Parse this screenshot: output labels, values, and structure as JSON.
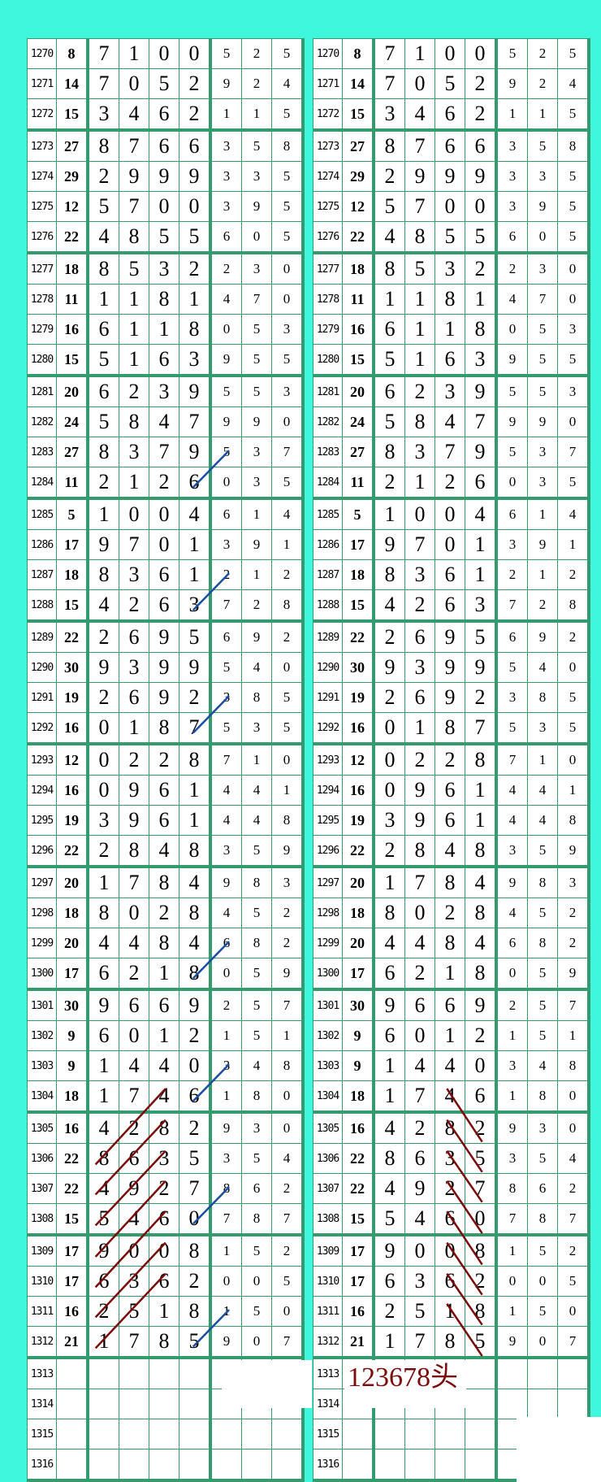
{
  "colors": {
    "background": "#3ef7dd",
    "grid": "#339b6e",
    "blue_line": "#1a4fa0",
    "red_line": "#7a0c0c"
  },
  "annotation": {
    "label": "123678头"
  },
  "rows": [
    {
      "period": "1270",
      "sum": "8",
      "big": [
        "7",
        "1",
        "0",
        "0"
      ],
      "small": [
        "5",
        "2",
        "5"
      ]
    },
    {
      "period": "1271",
      "sum": "14",
      "big": [
        "7",
        "0",
        "5",
        "2"
      ],
      "small": [
        "9",
        "2",
        "4"
      ]
    },
    {
      "period": "1272",
      "sum": "15",
      "big": [
        "3",
        "4",
        "6",
        "2"
      ],
      "small": [
        "1",
        "1",
        "5"
      ]
    },
    {
      "period": "1273",
      "sum": "27",
      "big": [
        "8",
        "7",
        "6",
        "6"
      ],
      "small": [
        "3",
        "5",
        "8"
      ]
    },
    {
      "period": "1274",
      "sum": "29",
      "big": [
        "2",
        "9",
        "9",
        "9"
      ],
      "small": [
        "3",
        "3",
        "5"
      ]
    },
    {
      "period": "1275",
      "sum": "12",
      "big": [
        "5",
        "7",
        "0",
        "0"
      ],
      "small": [
        "3",
        "9",
        "5"
      ]
    },
    {
      "period": "1276",
      "sum": "22",
      "big": [
        "4",
        "8",
        "5",
        "5"
      ],
      "small": [
        "6",
        "0",
        "5"
      ]
    },
    {
      "period": "1277",
      "sum": "18",
      "big": [
        "8",
        "5",
        "3",
        "2"
      ],
      "small": [
        "2",
        "3",
        "0"
      ]
    },
    {
      "period": "1278",
      "sum": "11",
      "big": [
        "1",
        "1",
        "8",
        "1"
      ],
      "small": [
        "4",
        "7",
        "0"
      ]
    },
    {
      "period": "1279",
      "sum": "16",
      "big": [
        "6",
        "1",
        "1",
        "8"
      ],
      "small": [
        "0",
        "5",
        "3"
      ]
    },
    {
      "period": "1280",
      "sum": "15",
      "big": [
        "5",
        "1",
        "6",
        "3"
      ],
      "small": [
        "9",
        "5",
        "5"
      ]
    },
    {
      "period": "1281",
      "sum": "20",
      "big": [
        "6",
        "2",
        "3",
        "9"
      ],
      "small": [
        "5",
        "5",
        "3"
      ]
    },
    {
      "period": "1282",
      "sum": "24",
      "big": [
        "5",
        "8",
        "4",
        "7"
      ],
      "small": [
        "9",
        "9",
        "0"
      ]
    },
    {
      "period": "1283",
      "sum": "27",
      "big": [
        "8",
        "3",
        "7",
        "9"
      ],
      "small": [
        "5",
        "3",
        "7"
      ]
    },
    {
      "period": "1284",
      "sum": "11",
      "big": [
        "2",
        "1",
        "2",
        "6"
      ],
      "small": [
        "0",
        "3",
        "5"
      ]
    },
    {
      "period": "1285",
      "sum": "5",
      "big": [
        "1",
        "0",
        "0",
        "4"
      ],
      "small": [
        "6",
        "1",
        "4"
      ]
    },
    {
      "period": "1286",
      "sum": "17",
      "big": [
        "9",
        "7",
        "0",
        "1"
      ],
      "small": [
        "3",
        "9",
        "1"
      ]
    },
    {
      "period": "1287",
      "sum": "18",
      "big": [
        "8",
        "3",
        "6",
        "1"
      ],
      "small": [
        "2",
        "1",
        "2"
      ]
    },
    {
      "period": "1288",
      "sum": "15",
      "big": [
        "4",
        "2",
        "6",
        "3"
      ],
      "small": [
        "7",
        "2",
        "8"
      ]
    },
    {
      "period": "1289",
      "sum": "22",
      "big": [
        "2",
        "6",
        "9",
        "5"
      ],
      "small": [
        "6",
        "9",
        "2"
      ]
    },
    {
      "period": "1290",
      "sum": "30",
      "big": [
        "9",
        "3",
        "9",
        "9"
      ],
      "small": [
        "5",
        "4",
        "0"
      ]
    },
    {
      "period": "1291",
      "sum": "19",
      "big": [
        "2",
        "6",
        "9",
        "2"
      ],
      "small": [
        "3",
        "8",
        "5"
      ]
    },
    {
      "period": "1292",
      "sum": "16",
      "big": [
        "0",
        "1",
        "8",
        "7"
      ],
      "small": [
        "5",
        "3",
        "5"
      ]
    },
    {
      "period": "1293",
      "sum": "12",
      "big": [
        "0",
        "2",
        "2",
        "8"
      ],
      "small": [
        "7",
        "1",
        "0"
      ]
    },
    {
      "period": "1294",
      "sum": "16",
      "big": [
        "0",
        "9",
        "6",
        "1"
      ],
      "small": [
        "4",
        "4",
        "1"
      ]
    },
    {
      "period": "1295",
      "sum": "19",
      "big": [
        "3",
        "9",
        "6",
        "1"
      ],
      "small": [
        "4",
        "4",
        "8"
      ]
    },
    {
      "period": "1296",
      "sum": "22",
      "big": [
        "2",
        "8",
        "4",
        "8"
      ],
      "small": [
        "3",
        "5",
        "9"
      ]
    },
    {
      "period": "1297",
      "sum": "20",
      "big": [
        "1",
        "7",
        "8",
        "4"
      ],
      "small": [
        "9",
        "8",
        "3"
      ]
    },
    {
      "period": "1298",
      "sum": "18",
      "big": [
        "8",
        "0",
        "2",
        "8"
      ],
      "small": [
        "4",
        "5",
        "2"
      ]
    },
    {
      "period": "1299",
      "sum": "20",
      "big": [
        "4",
        "4",
        "8",
        "4"
      ],
      "small": [
        "6",
        "8",
        "2"
      ]
    },
    {
      "period": "1300",
      "sum": "17",
      "big": [
        "6",
        "2",
        "1",
        "8"
      ],
      "small": [
        "0",
        "5",
        "9"
      ]
    },
    {
      "period": "1301",
      "sum": "30",
      "big": [
        "9",
        "6",
        "6",
        "9"
      ],
      "small": [
        "2",
        "5",
        "7"
      ]
    },
    {
      "period": "1302",
      "sum": "9",
      "big": [
        "6",
        "0",
        "1",
        "2"
      ],
      "small": [
        "1",
        "5",
        "1"
      ]
    },
    {
      "period": "1303",
      "sum": "9",
      "big": [
        "1",
        "4",
        "4",
        "0"
      ],
      "small": [
        "3",
        "4",
        "8"
      ]
    },
    {
      "period": "1304",
      "sum": "18",
      "big": [
        "1",
        "7",
        "4",
        "6"
      ],
      "small": [
        "1",
        "8",
        "0"
      ]
    },
    {
      "period": "1305",
      "sum": "16",
      "big": [
        "4",
        "2",
        "8",
        "2"
      ],
      "small": [
        "9",
        "3",
        "0"
      ]
    },
    {
      "period": "1306",
      "sum": "22",
      "big": [
        "8",
        "6",
        "3",
        "5"
      ],
      "small": [
        "3",
        "5",
        "4"
      ]
    },
    {
      "period": "1307",
      "sum": "22",
      "big": [
        "4",
        "9",
        "2",
        "7"
      ],
      "small": [
        "8",
        "6",
        "2"
      ]
    },
    {
      "period": "1308",
      "sum": "15",
      "big": [
        "5",
        "4",
        "6",
        "0"
      ],
      "small": [
        "7",
        "8",
        "7"
      ]
    },
    {
      "period": "1309",
      "sum": "17",
      "big": [
        "9",
        "0",
        "0",
        "8"
      ],
      "small": [
        "1",
        "5",
        "2"
      ]
    },
    {
      "period": "1310",
      "sum": "17",
      "big": [
        "6",
        "3",
        "6",
        "2"
      ],
      "small": [
        "0",
        "0",
        "5"
      ]
    },
    {
      "period": "1311",
      "sum": "16",
      "big": [
        "2",
        "5",
        "1",
        "8"
      ],
      "small": [
        "1",
        "5",
        "0"
      ]
    },
    {
      "period": "1312",
      "sum": "21",
      "big": [
        "1",
        "7",
        "8",
        "5"
      ],
      "small": [
        "9",
        "0",
        "7"
      ]
    },
    {
      "period": "1313",
      "sum": "",
      "big": [
        "",
        "",
        "",
        ""
      ],
      "small": [
        "",
        "",
        ""
      ]
    },
    {
      "period": "1314",
      "sum": "",
      "big": [
        "",
        "",
        "",
        ""
      ],
      "small": [
        "",
        "",
        ""
      ]
    },
    {
      "period": "1315",
      "sum": "",
      "big": [
        "",
        "",
        "",
        ""
      ],
      "small": [
        "",
        "",
        ""
      ]
    },
    {
      "period": "1316",
      "sum": "",
      "big": [
        "",
        "",
        "",
        ""
      ],
      "small": [
        "",
        "",
        ""
      ]
    }
  ]
}
